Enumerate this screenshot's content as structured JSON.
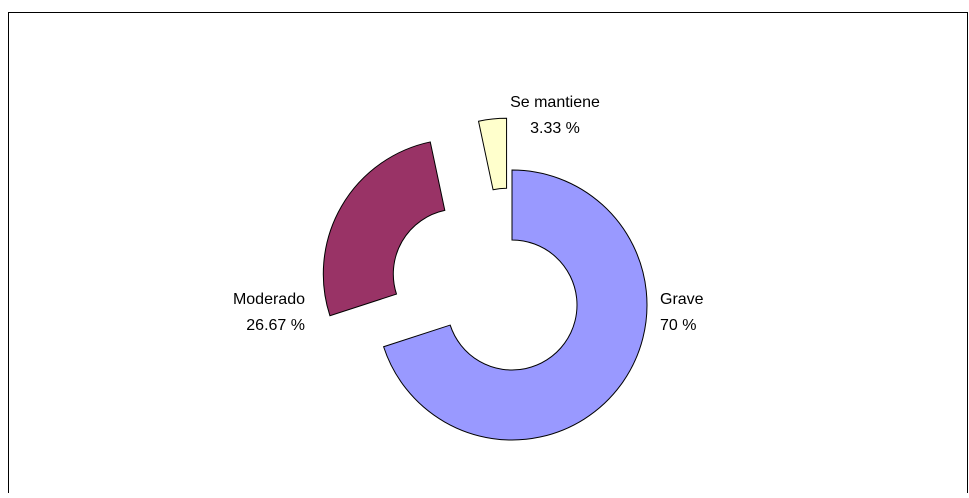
{
  "chart_data": {
    "type": "pie",
    "categories": [
      "Grave",
      "Moderado",
      "Se mantiene"
    ],
    "values": [
      70,
      26.67,
      3.33
    ],
    "value_labels": [
      "70  %",
      "26.67 %",
      "3.33 %"
    ],
    "colors": [
      "#9999ff",
      "#993366",
      "#ffffcc"
    ]
  }
}
